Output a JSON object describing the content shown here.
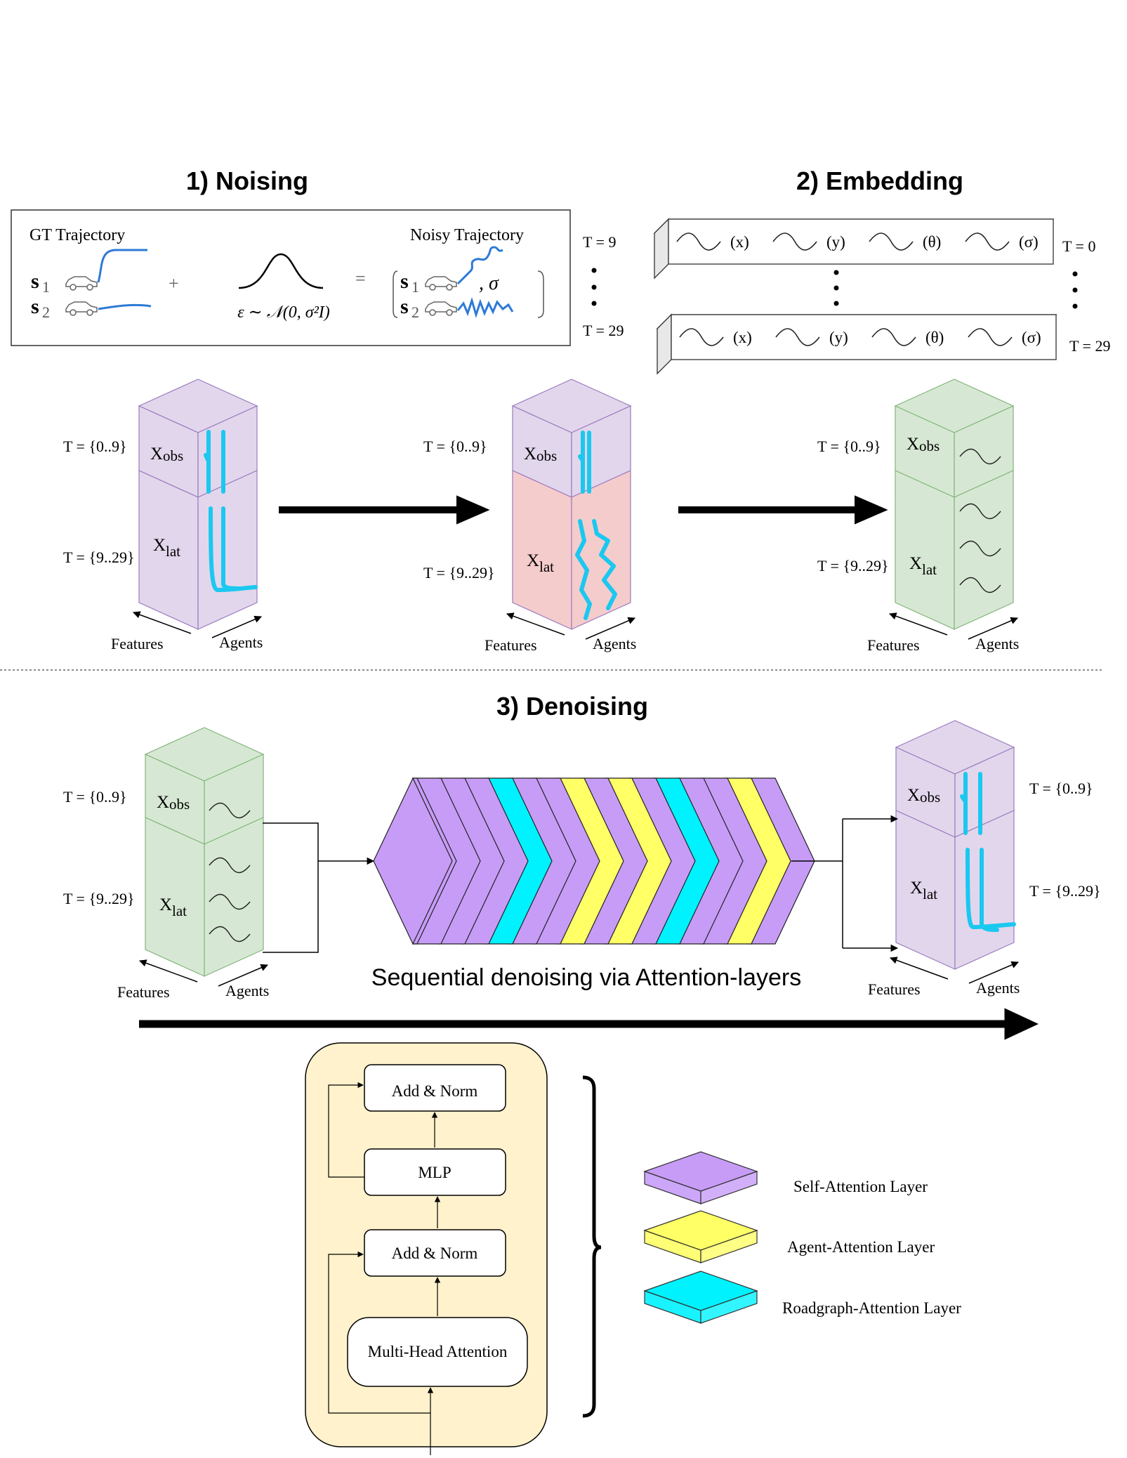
{
  "colors": {
    "purple": "#e2d6ec",
    "purple_stroke": "#9a7bbf",
    "pink": "#f5cccc",
    "pink_stroke": "#c98080",
    "green": "#d6e8d3",
    "green_stroke": "#84b47c",
    "cyan_line": "#1ac8f0",
    "blue_traj": "#2d7ad6",
    "layer_purple": "#c79cf7",
    "layer_yellow": "#ffff66",
    "layer_cyan": "#00f2ff",
    "panel_bg": "#fff2cc"
  },
  "sections": {
    "noising": "1) Noising",
    "embedding": "2) Embedding",
    "denoising": "3) Denoising"
  },
  "noising_box": {
    "gt_label": "GT Trajectory",
    "noisy_label": "Noisy Trajectory",
    "s1": "s",
    "s1_sub": "1",
    "s2": "s",
    "s2_sub": "2",
    "plus": "+",
    "equals": "=",
    "epsilon": "ε ∼ 𝒩(0, σ²I)",
    "comma_sigma": ", σ",
    "t_top": "T = 9",
    "t_bottom": "T = 29"
  },
  "embedding_box": {
    "labels": [
      "(x)",
      "(y)",
      "(θ)",
      "(σ)"
    ],
    "t_top": "T = 0",
    "t_bottom": "T = 29"
  },
  "blocks": {
    "t_obs": "T = {0..9}",
    "t_lat": "T = {9..29}",
    "x": "X",
    "obs_sub": "obs",
    "lat_sub": "lat",
    "features": "Features",
    "agents": "Agents"
  },
  "denoise_caption": "Sequential denoising via Attention-layers",
  "layer_sequence": [
    "purple",
    "purple",
    "purple",
    "cyan",
    "purple",
    "purple",
    "yellow",
    "purple",
    "yellow",
    "purple",
    "cyan",
    "purple",
    "purple",
    "yellow",
    "purple"
  ],
  "transformer": {
    "add_norm_top": "Add & Norm",
    "mlp": "MLP",
    "add_norm_bottom": "Add & Norm",
    "mha": "Multi-Head Attention"
  },
  "legend": {
    "self": "Self-Attention Layer",
    "agent": "Agent-Attention Layer",
    "road": "Roadgraph-Attention Layer"
  }
}
